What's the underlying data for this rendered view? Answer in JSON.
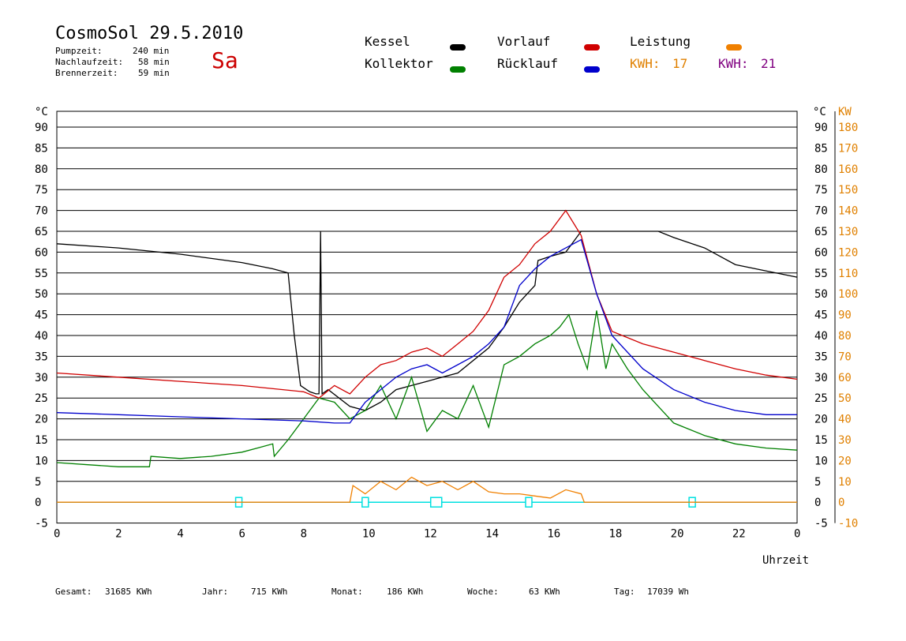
{
  "header": {
    "title": "CosmoSol 29.5.2010",
    "day": "Sa",
    "stats": [
      {
        "label": "Pumpzeit:",
        "value": "240 min"
      },
      {
        "label": "Nachlaufzeit:",
        "value": "58 min"
      },
      {
        "label": "Brennerzeit:",
        "value": "59 min"
      }
    ]
  },
  "legend": {
    "kessel": "Kessel",
    "kollektor": "Kollektor",
    "vorlauf": "Vorlauf",
    "ruecklauf": "Rücklauf",
    "leistung": "Leistung",
    "kwh1_label": "KWH:",
    "kwh1_value": "17",
    "kwh2_label": "KWH:",
    "kwh2_value": "21"
  },
  "colors": {
    "kessel": "#000000",
    "kollektor": "#008000",
    "vorlauf": "#d00000",
    "ruecklauf": "#0000cc",
    "leistung": "#f08000",
    "kwh2": "#800080",
    "pump": "#00e0e0",
    "axis_right": "#e08000"
  },
  "axes": {
    "left_unit": "°C",
    "right_unit_c": "°C",
    "right_unit_kw": "KW",
    "xlabel": "Uhrzeit"
  },
  "footer": {
    "gesamt_label": "Gesamt:",
    "gesamt_value": "31685 KWh",
    "jahr_label": "Jahr:",
    "jahr_value": "715 KWh",
    "monat_label": "Monat:",
    "monat_value": "186 KWh",
    "woche_label": "Woche:",
    "woche_value": "63 KWh",
    "tag_label": "Tag:",
    "tag_value": "17039 Wh"
  },
  "chart_data": {
    "type": "line",
    "x_label": "Uhrzeit",
    "xlim": [
      0,
      24
    ],
    "ylim": [
      -5,
      90
    ],
    "y2lim": [
      -10,
      180
    ],
    "x_ticks": [
      "0",
      "2",
      "4",
      "6",
      "8",
      "10",
      "12",
      "14",
      "16",
      "18",
      "20",
      "22",
      "0"
    ],
    "y_ticks": [
      "90",
      "85",
      "80",
      "75",
      "70",
      "65",
      "60",
      "55",
      "50",
      "45",
      "40",
      "35",
      "30",
      "25",
      "20",
      "15",
      "10",
      "5",
      "0",
      "-5"
    ],
    "y2_ticks": [
      "180",
      "170",
      "160",
      "150",
      "140",
      "130",
      "120",
      "110",
      "100",
      "90",
      "80",
      "70",
      "60",
      "50",
      "40",
      "30",
      "20",
      "10",
      "0",
      "-10"
    ],
    "grid": true,
    "series": [
      {
        "name": "Kessel",
        "x": [
          0,
          2,
          4,
          6,
          7,
          7.5,
          7.7,
          7.9,
          8.2,
          8.4,
          8.5,
          8.55,
          8.6,
          8.8,
          9.5,
          10,
          10.5,
          11,
          12,
          12.5,
          13,
          14,
          14.5,
          15,
          15.5,
          15.6,
          16,
          16.5,
          17,
          17.5,
          18,
          19,
          19.5,
          20,
          21,
          22,
          23,
          24
        ],
        "y": [
          62,
          61,
          59.5,
          57.5,
          56,
          55,
          40,
          28,
          26.5,
          26,
          26,
          65,
          26,
          27,
          23,
          22,
          24,
          27,
          29,
          30,
          31,
          37,
          42,
          48,
          52,
          58,
          59,
          60,
          65,
          65,
          65,
          65,
          65,
          63.5,
          61,
          57,
          55.5,
          54
        ]
      },
      {
        "name": "Kollektor",
        "x": [
          0,
          1,
          2,
          3,
          3.05,
          4,
          5,
          6,
          6.5,
          7,
          7.05,
          7.5,
          8,
          8.5,
          9,
          9.5,
          10,
          10.5,
          11,
          11.5,
          12,
          12.5,
          13,
          13.5,
          14,
          14.5,
          15,
          15.5,
          16,
          16.3,
          16.6,
          16.9,
          17.2,
          17.5,
          17.8,
          18,
          18.5,
          19,
          19.5,
          20,
          21,
          22,
          23,
          24
        ],
        "y": [
          9.5,
          9,
          8.5,
          8.5,
          11,
          10.5,
          11,
          12,
          13,
          14,
          11,
          15,
          20,
          25,
          24,
          20,
          22,
          28,
          20,
          30,
          17,
          22,
          20,
          28,
          18,
          33,
          35,
          38,
          40,
          42,
          45,
          38,
          32,
          46,
          32,
          38,
          32,
          27,
          23,
          19,
          16,
          14,
          13,
          12.5
        ]
      },
      {
        "name": "Vorlauf",
        "x": [
          0,
          2,
          4,
          6,
          8,
          8.5,
          9,
          9.5,
          10,
          10.5,
          11,
          11.5,
          12,
          12.5,
          13,
          13.5,
          14,
          14.5,
          15,
          15.5,
          16,
          16.5,
          17,
          17.5,
          18,
          19,
          20,
          21,
          22,
          23,
          24
        ],
        "y": [
          31,
          30,
          29,
          28,
          26.5,
          25,
          28,
          26,
          30,
          33,
          34,
          36,
          37,
          35,
          38,
          41,
          46,
          54,
          57,
          62,
          65,
          70,
          64,
          50,
          41,
          38,
          36,
          34,
          32,
          30.5,
          29.5
        ]
      },
      {
        "name": "Rücklauf",
        "x": [
          0,
          2,
          4,
          6,
          8,
          9,
          9.5,
          10,
          10.5,
          11,
          11.5,
          12,
          12.5,
          13,
          13.5,
          14,
          14.5,
          15,
          15.5,
          16,
          16.5,
          17,
          17.5,
          18,
          19,
          20,
          21,
          22,
          23,
          24
        ],
        "y": [
          21.5,
          21,
          20.5,
          20,
          19.5,
          19,
          19,
          24,
          27,
          30,
          32,
          33,
          31,
          33,
          35,
          38,
          42,
          52,
          56,
          59,
          61,
          63,
          50,
          40,
          32,
          27,
          24,
          22,
          21,
          21
        ]
      },
      {
        "name": "Leistung",
        "x": [
          0,
          9.5,
          9.6,
          10,
          10.5,
          11,
          11.5,
          12,
          12.5,
          13,
          13.5,
          14,
          14.5,
          15,
          15.5,
          16,
          16.5,
          17,
          17.1,
          24
        ],
        "y": [
          0,
          0,
          8,
          4,
          10,
          6,
          12,
          8,
          10,
          6,
          10,
          5,
          4,
          4,
          3,
          2,
          6,
          4,
          0,
          0
        ]
      }
    ]
  }
}
